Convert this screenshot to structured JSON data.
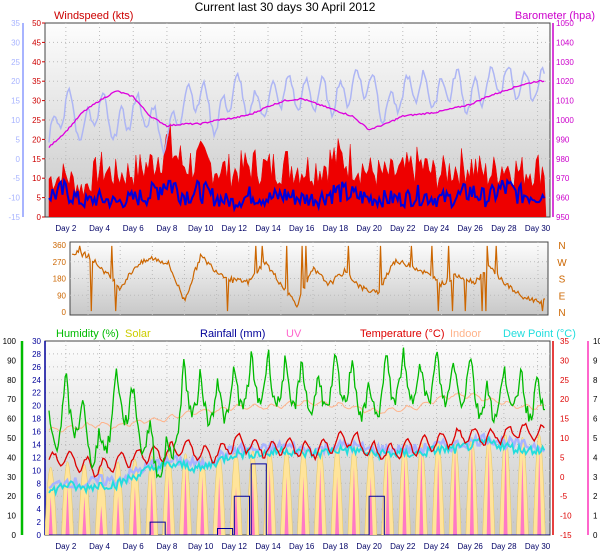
{
  "title": "Current last 30 days 30 April 2012",
  "colors": {
    "windspeed": "#ee0000",
    "gust": "#ee0000",
    "wind_avg": "#0000dd",
    "temp_scale": "#a8b4ff",
    "barometer": "#dd00dd",
    "baro_trace": "#aeb6f4",
    "direction": "#cc6600",
    "humidity": "#00bb00",
    "solar": "#cccc00",
    "rainfall": "#000099",
    "uv": "#ff66cc",
    "temperature": "#dd0000",
    "indoor": "#ffb38a",
    "dewpoint": "#22dddd",
    "plot_top": "#fdfdfd",
    "plot_bottom": "#c8c8c8"
  },
  "chart_data": [
    {
      "type": "line",
      "panel": "wind-barometer",
      "legend_left": "Windspeed (kts)",
      "legend_right": "Barometer (hpa)",
      "x_ticks": [
        "Day 2",
        "Day 4",
        "Day 6",
        "Day 8",
        "Day 10",
        "Day 12",
        "Day 14",
        "Day 16",
        "Day 18",
        "Day 20",
        "Day 22",
        "Day 24",
        "Day 26",
        "Day 28",
        "Day 30"
      ],
      "left_axis_ticks": [
        "50",
        "45",
        "40",
        "35",
        "30",
        "25",
        "20",
        "15",
        "10",
        "5",
        "0"
      ],
      "far_left_axis_ticks": [
        "35",
        "30",
        "25",
        "20",
        "15",
        "10",
        "5",
        "0",
        "-5",
        "-10",
        "-15"
      ],
      "right_axis_ticks": [
        "1050",
        "1040",
        "1030",
        "1020",
        "1010",
        "1000",
        "990",
        "980",
        "970",
        "960",
        "950"
      ],
      "ylim_wind": [
        0,
        50
      ],
      "ylim_baro": [
        950,
        1050
      ],
      "series": [
        {
          "name": "Barometer (hpa)",
          "x": [
            1,
            2,
            3,
            4,
            5,
            6,
            7,
            8,
            9,
            10,
            11,
            12,
            13,
            14,
            15,
            16,
            17,
            18,
            19,
            20,
            21,
            22,
            23,
            24,
            25,
            26,
            27,
            28,
            29,
            30
          ],
          "values": [
            986,
            994,
            1004,
            1010,
            1015,
            1012,
            1002,
            997,
            998,
            998,
            1000,
            1001,
            1003,
            1007,
            1010,
            1011,
            1008,
            1005,
            1002,
            995,
            998,
            1002,
            1003,
            1004,
            1006,
            1008,
            1012,
            1015,
            1018,
            1020
          ]
        },
        {
          "name": "Wind gust (kts)",
          "x": [
            1,
            2,
            3,
            4,
            5,
            6,
            7,
            8,
            9,
            10,
            11,
            12,
            13,
            14,
            15,
            16,
            17,
            18,
            19,
            20,
            21,
            22,
            23,
            24,
            25,
            26,
            27,
            28,
            29,
            30
          ],
          "values": [
            11,
            12,
            8,
            14,
            12,
            13,
            15,
            21,
            15,
            16,
            14,
            13,
            15,
            14,
            15,
            14,
            14,
            17,
            16,
            13,
            12,
            13,
            15,
            12,
            14,
            15,
            12,
            15,
            13,
            14
          ]
        },
        {
          "name": "Windspeed avg (kts)",
          "x": [
            1,
            2,
            3,
            4,
            5,
            6,
            7,
            8,
            9,
            10,
            11,
            12,
            13,
            14,
            15,
            16,
            17,
            18,
            19,
            20,
            21,
            22,
            23,
            24,
            25,
            26,
            27,
            28,
            29,
            30
          ],
          "values": [
            6,
            7,
            4,
            5,
            4,
            5,
            6,
            10,
            6,
            7,
            5,
            4,
            6,
            5,
            6,
            5,
            5,
            7,
            6,
            5,
            5,
            5,
            6,
            5,
            5,
            7,
            5,
            8,
            6,
            6
          ]
        },
        {
          "name": "Temperature trace",
          "x": [
            1,
            2,
            3,
            4,
            5,
            6,
            7,
            8,
            9,
            10,
            11,
            12,
            13,
            14,
            15,
            16,
            17,
            18,
            19,
            20,
            21,
            22,
            23,
            24,
            25,
            26,
            27,
            28,
            29,
            30
          ],
          "values": [
            10,
            20,
            12,
            19,
            12,
            18,
            16,
            10,
            20,
            22,
            14,
            24,
            18,
            20,
            23,
            21,
            22,
            20,
            24,
            25,
            17,
            22,
            24,
            21,
            25,
            20,
            24,
            26,
            23,
            24
          ]
        }
      ]
    },
    {
      "type": "line",
      "panel": "direction",
      "left_axis_ticks": [
        "360",
        "270",
        "180",
        "90",
        "0"
      ],
      "right_axis_labels": [
        "N",
        "W",
        "S",
        "E",
        "N"
      ],
      "ylim": [
        0,
        360
      ],
      "series": [
        {
          "name": "Wind direction",
          "x": [
            1,
            2,
            3,
            4,
            5,
            6,
            7,
            8,
            9,
            10,
            11,
            12,
            13,
            14,
            15,
            16,
            17,
            18,
            19,
            20,
            21,
            22,
            23,
            24,
            25,
            26,
            27,
            28,
            29,
            30
          ],
          "values": [
            320,
            305,
            220,
            130,
            250,
            290,
            260,
            60,
            300,
            220,
            170,
            160,
            270,
            150,
            40,
            230,
            150,
            220,
            130,
            100,
            270,
            255,
            210,
            150,
            200,
            160,
            240,
            150,
            80,
            60
          ]
        }
      ]
    },
    {
      "type": "line",
      "panel": "humidity-temperature",
      "legend": [
        "Humidity (%)",
        "Solar",
        "Rainfall (mm)",
        "UV",
        "Temperature (°C)",
        "Indoor",
        "Dew Point (°C)"
      ],
      "x_ticks": [
        "Day 2",
        "Day 4",
        "Day 6",
        "Day 8",
        "Day 10",
        "Day 12",
        "Day 14",
        "Day 16",
        "Day 18",
        "Day 20",
        "Day 22",
        "Day 24",
        "Day 26",
        "Day 28",
        "Day 30"
      ],
      "humidity_axis_ticks": [
        "100",
        "90",
        "80",
        "70",
        "60",
        "50",
        "40",
        "30",
        "20",
        "10",
        "0"
      ],
      "rain_axis_ticks": [
        "30",
        "28",
        "26",
        "24",
        "22",
        "20",
        "18",
        "16",
        "14",
        "12",
        "10",
        "8",
        "6",
        "4",
        "2",
        "0"
      ],
      "temp_axis_ticks": [
        "35",
        "30",
        "25",
        "20",
        "15",
        "10",
        "5",
        "0",
        "-5",
        "-10",
        "-15"
      ],
      "uv_axis_ticks": [
        "10",
        "9",
        "8",
        "7",
        "6",
        "5",
        "4",
        "3",
        "2",
        "1",
        "0"
      ],
      "ylim_humidity": [
        0,
        100
      ],
      "ylim_rain": [
        0,
        30
      ],
      "ylim_temp": [
        -15,
        35
      ],
      "ylim_uv": [
        0,
        10
      ],
      "series": [
        {
          "name": "Humidity (%)",
          "x": [
            1,
            2,
            3,
            4,
            5,
            6,
            7,
            8,
            9,
            10,
            11,
            12,
            13,
            14,
            15,
            16,
            17,
            18,
            19,
            20,
            21,
            22,
            23,
            24,
            25,
            26,
            27,
            28,
            29,
            30
          ],
          "values": [
            62,
            83,
            72,
            55,
            88,
            80,
            60,
            50,
            90,
            85,
            82,
            88,
            93,
            95,
            90,
            92,
            85,
            94,
            93,
            80,
            94,
            95,
            93,
            95,
            92,
            96,
            80,
            90,
            88,
            85
          ]
        },
        {
          "name": "Temperature (°C)",
          "x": [
            1,
            2,
            3,
            4,
            5,
            6,
            7,
            8,
            9,
            10,
            11,
            12,
            13,
            14,
            15,
            16,
            17,
            18,
            19,
            20,
            21,
            22,
            23,
            24,
            25,
            26,
            27,
            28,
            29,
            30
          ],
          "values": [
            4,
            5,
            3,
            2,
            4,
            5,
            6,
            6,
            8,
            6,
            6,
            9,
            8,
            7,
            8,
            7,
            7,
            9,
            10,
            7,
            6,
            7,
            8,
            9,
            10,
            11,
            10,
            11,
            12,
            11
          ]
        },
        {
          "name": "Indoor",
          "x": [
            1,
            2,
            3,
            4,
            5,
            6,
            7,
            8,
            9,
            10,
            11,
            12,
            13,
            14,
            15,
            16,
            17,
            18,
            19,
            20,
            21,
            22,
            23,
            24,
            25,
            26,
            27,
            28,
            29,
            30
          ],
          "values": [
            12,
            12.5,
            13,
            13.5,
            13,
            14,
            14.5,
            15,
            16,
            17,
            17,
            18,
            18,
            18,
            18.5,
            19,
            19,
            18.5,
            18,
            17,
            17,
            17.5,
            18,
            20,
            21,
            21,
            20,
            19,
            18,
            18
          ]
        },
        {
          "name": "Dew Point (°C)",
          "x": [
            1,
            2,
            3,
            4,
            5,
            6,
            7,
            8,
            9,
            10,
            11,
            12,
            13,
            14,
            15,
            16,
            17,
            18,
            19,
            20,
            21,
            22,
            23,
            24,
            25,
            26,
            27,
            28,
            29,
            30
          ],
          "values": [
            -4,
            -2,
            -3,
            -2,
            -2,
            0,
            2,
            3,
            3,
            2,
            4,
            6,
            6,
            6,
            7,
            6,
            6,
            7,
            7,
            6,
            6,
            6,
            6,
            7,
            7,
            8,
            9,
            8,
            7,
            7
          ]
        },
        {
          "name": "Rainfall (mm)",
          "x": [
            1,
            2,
            3,
            4,
            5,
            6,
            7,
            8,
            9,
            10,
            11,
            12,
            13,
            14,
            15,
            16,
            17,
            18,
            19,
            20,
            21,
            22,
            23,
            24,
            25,
            26,
            27,
            28,
            29,
            30
          ],
          "values": [
            0,
            0,
            0,
            0,
            0,
            0,
            2,
            0,
            0,
            0,
            1,
            6,
            11,
            0,
            0,
            0,
            0,
            0,
            0,
            6,
            0,
            0,
            0,
            0,
            0,
            0,
            0,
            0,
            0,
            0
          ]
        },
        {
          "name": "UV",
          "x": [
            1,
            2,
            3,
            4,
            5,
            6,
            7,
            8,
            9,
            10,
            11,
            12,
            13,
            14,
            15,
            16,
            17,
            18,
            19,
            20,
            21,
            22,
            23,
            24,
            25,
            26,
            27,
            28,
            29,
            30
          ],
          "values": [
            2,
            2.5,
            2,
            1.5,
            2,
            2.5,
            3,
            3,
            3.5,
            3,
            3,
            2.5,
            3,
            3.5,
            3,
            3,
            3.5,
            3,
            3.5,
            3,
            4,
            4,
            4.5,
            4,
            4.5,
            5,
            4.5,
            5,
            4,
            4.5
          ]
        },
        {
          "name": "Solar",
          "x": [
            1,
            2,
            3,
            4,
            5,
            6,
            7,
            8,
            9,
            10,
            11,
            12,
            13,
            14,
            15,
            16,
            17,
            18,
            19,
            20,
            21,
            22,
            23,
            24,
            25,
            26,
            27,
            28,
            29,
            30
          ],
          "values": [
            10,
            12,
            11,
            10,
            12,
            13,
            14,
            15,
            15,
            14,
            15,
            16,
            16,
            17,
            17,
            17,
            18,
            18,
            18,
            17,
            18,
            19,
            19,
            20,
            20,
            21,
            21,
            22,
            21,
            22
          ]
        }
      ]
    }
  ]
}
